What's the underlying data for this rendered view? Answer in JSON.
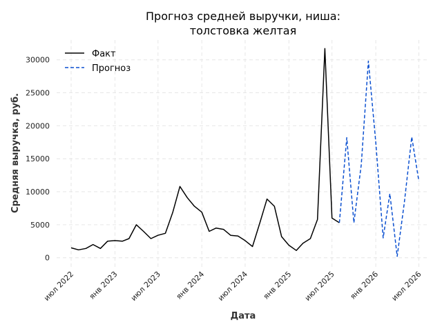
{
  "chart_data": {
    "type": "line",
    "title_line1": "Прогноз средней выручки, ниша:",
    "title_line2": "толстовка желтая",
    "xlabel": "Дата",
    "ylabel": "Средняя выручка, руб.",
    "ylim": [
      -1700,
      33000
    ],
    "yticks": [
      0,
      5000,
      10000,
      15000,
      20000,
      25000,
      30000
    ],
    "xlim": [
      "2022-05-01",
      "2026-08-15"
    ],
    "xticks": [
      {
        "date": "2022-07-01",
        "label": "июл 2022"
      },
      {
        "date": "2023-01-01",
        "label": "янв 2023"
      },
      {
        "date": "2023-07-01",
        "label": "июл 2023"
      },
      {
        "date": "2024-01-01",
        "label": "янв 2024"
      },
      {
        "date": "2024-07-01",
        "label": "июл 2024"
      },
      {
        "date": "2025-01-01",
        "label": "янв 2025"
      },
      {
        "date": "2025-07-01",
        "label": "июл 2025"
      },
      {
        "date": "2026-01-01",
        "label": "янв 2026"
      },
      {
        "date": "2026-07-01",
        "label": "июл 2026"
      }
    ],
    "grid": true,
    "legend_position": "top-left",
    "series": [
      {
        "name": "Факт",
        "color": "#000000",
        "style": "solid",
        "points": [
          [
            "2022-07-01",
            1500
          ],
          [
            "2022-08-01",
            1200
          ],
          [
            "2022-09-01",
            1400
          ],
          [
            "2022-10-01",
            2000
          ],
          [
            "2022-11-01",
            1400
          ],
          [
            "2022-12-01",
            2500
          ],
          [
            "2023-01-01",
            2600
          ],
          [
            "2023-02-01",
            2500
          ],
          [
            "2023-03-01",
            2900
          ],
          [
            "2023-04-01",
            5000
          ],
          [
            "2023-05-01",
            4000
          ],
          [
            "2023-06-01",
            2900
          ],
          [
            "2023-07-01",
            3400
          ],
          [
            "2023-08-01",
            3700
          ],
          [
            "2023-09-01",
            6900
          ],
          [
            "2023-10-01",
            10800
          ],
          [
            "2023-11-01",
            9100
          ],
          [
            "2023-12-01",
            7800
          ],
          [
            "2024-01-01",
            6900
          ],
          [
            "2024-02-01",
            4000
          ],
          [
            "2024-03-01",
            4500
          ],
          [
            "2024-04-01",
            4300
          ],
          [
            "2024-05-01",
            3400
          ],
          [
            "2024-06-01",
            3300
          ],
          [
            "2024-07-01",
            2600
          ],
          [
            "2024-08-01",
            1700
          ],
          [
            "2024-09-01",
            5300
          ],
          [
            "2024-10-01",
            8900
          ],
          [
            "2024-11-01",
            7800
          ],
          [
            "2024-12-01",
            3200
          ],
          [
            "2025-01-01",
            1900
          ],
          [
            "2025-02-01",
            1100
          ],
          [
            "2025-03-01",
            2200
          ],
          [
            "2025-04-01",
            2900
          ],
          [
            "2025-05-01",
            5800
          ],
          [
            "2025-06-01",
            31700
          ],
          [
            "2025-07-01",
            6000
          ],
          [
            "2025-08-01",
            5300
          ]
        ]
      },
      {
        "name": "Прогноз",
        "color": "#0a4fd0",
        "style": "dashed",
        "points": [
          [
            "2025-08-01",
            5300
          ],
          [
            "2025-09-01",
            18200
          ],
          [
            "2025-10-01",
            5300
          ],
          [
            "2025-11-01",
            14100
          ],
          [
            "2025-12-01",
            29800
          ],
          [
            "2026-01-01",
            17500
          ],
          [
            "2026-02-01",
            3000
          ],
          [
            "2026-03-01",
            9700
          ],
          [
            "2026-04-01",
            200
          ],
          [
            "2026-05-01",
            8400
          ],
          [
            "2026-06-01",
            18300
          ],
          [
            "2026-07-01",
            11600
          ]
        ]
      }
    ]
  }
}
